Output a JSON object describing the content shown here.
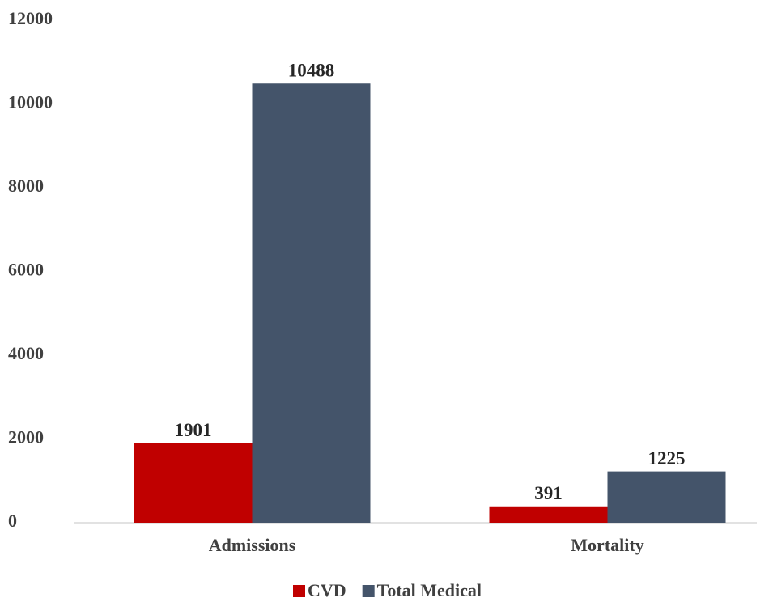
{
  "chart_data": {
    "type": "bar",
    "categories": [
      "Admissions",
      "Mortality"
    ],
    "series": [
      {
        "name": "CVD",
        "color": "#c00000",
        "values": [
          1901,
          391
        ]
      },
      {
        "name": "Total Medical",
        "color": "#44546a",
        "values": [
          10488,
          1225
        ]
      }
    ],
    "ylim": [
      0,
      12000
    ],
    "yticks": [
      0,
      2000,
      4000,
      6000,
      8000,
      10000,
      12000
    ],
    "grid": false,
    "legend": "bottom"
  }
}
